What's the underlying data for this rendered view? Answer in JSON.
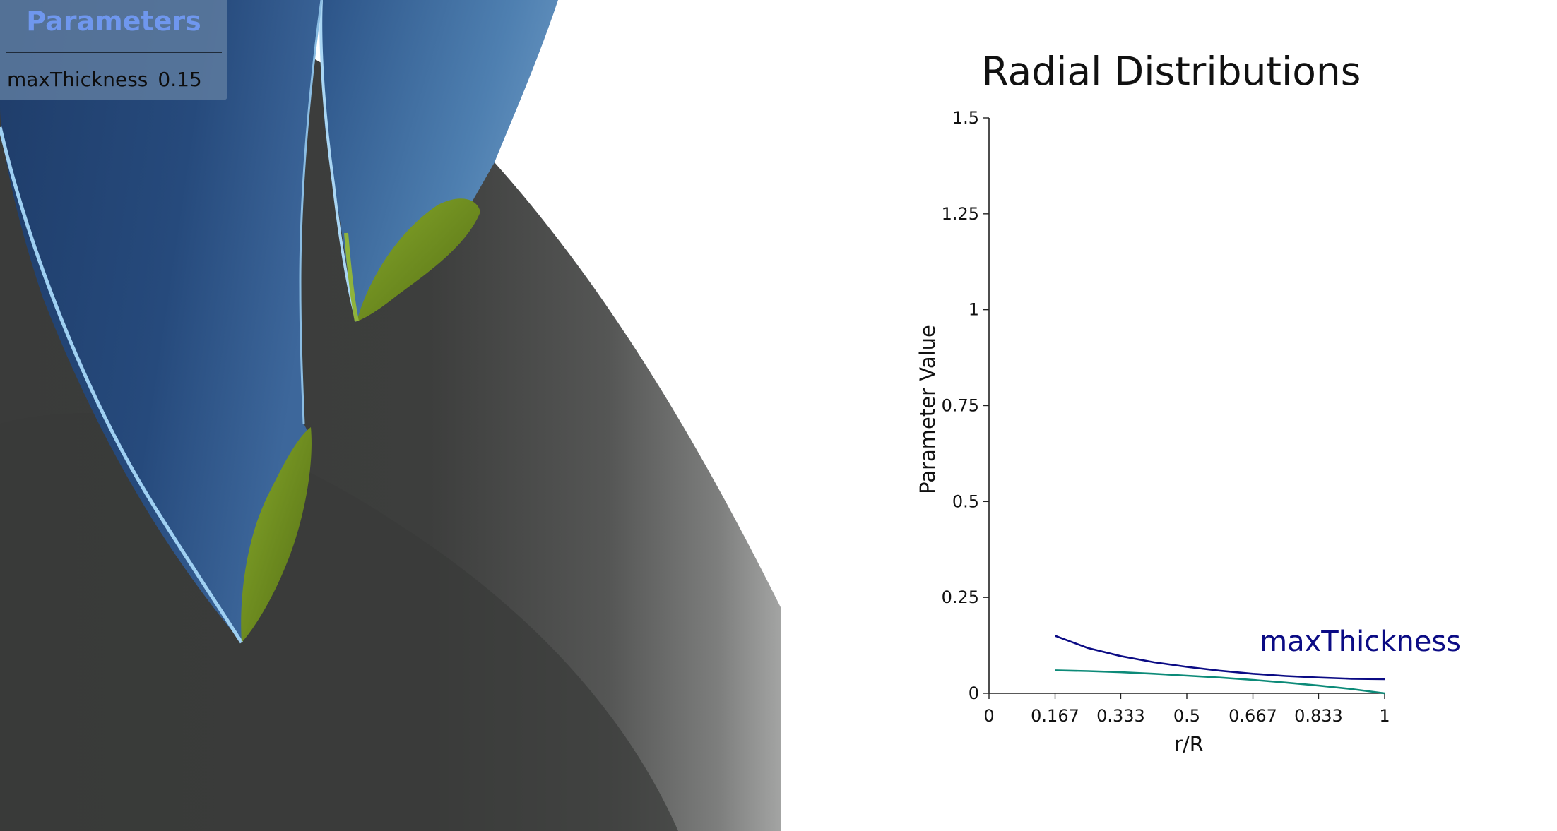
{
  "panel": {
    "title": "Parameters",
    "param_name": "maxThickness",
    "param_value": "0.15"
  },
  "colors": {
    "blade_blue": "#2b4f82",
    "blade_highlight": "#9fd0f2",
    "tip_green": "#6e8f22",
    "hub_gray": "#3c3d3c",
    "panel_title": "#6f97ee",
    "series_main": "#0b0b84",
    "series_secondary": "#0c8a78"
  },
  "chart_data": {
    "type": "line",
    "title": "Radial Distributions",
    "xlabel": "r/R",
    "ylabel": "Parameter Value",
    "xlim": [
      0,
      1
    ],
    "ylim": [
      0,
      1.5
    ],
    "xticks": [
      "0",
      "0.167",
      "0.333",
      "0.5",
      "0.667",
      "0.833",
      "1"
    ],
    "yticks": [
      "0",
      "0.25",
      "0.5",
      "0.75",
      "1",
      "1.25",
      "1.5"
    ],
    "grid": false,
    "series": [
      {
        "name": "maxThickness",
        "color": "#0b0b84",
        "x": [
          0.167,
          0.25,
          0.333,
          0.417,
          0.5,
          0.583,
          0.667,
          0.75,
          0.833,
          0.917,
          1.0
        ],
        "y": [
          0.15,
          0.118,
          0.097,
          0.081,
          0.069,
          0.059,
          0.051,
          0.045,
          0.041,
          0.038,
          0.037
        ]
      },
      {
        "color": "#0c8a78",
        "x": [
          0.167,
          0.25,
          0.333,
          0.417,
          0.5,
          0.583,
          0.667,
          0.75,
          0.833,
          0.917,
          1.0
        ],
        "y": [
          0.06,
          0.058,
          0.055,
          0.051,
          0.046,
          0.041,
          0.035,
          0.028,
          0.02,
          0.011,
          0.0
        ]
      }
    ]
  }
}
